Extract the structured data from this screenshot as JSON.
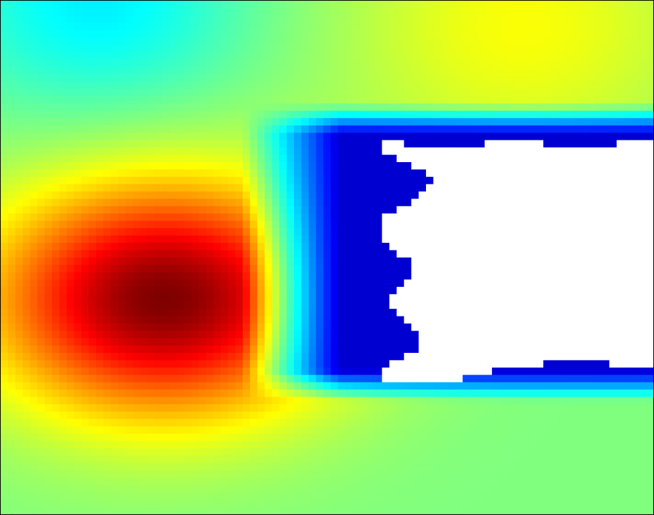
{
  "chart_data": {
    "type": "heatmap",
    "title": "",
    "xlabel": "",
    "ylabel": "",
    "grid": false,
    "legend": "none",
    "colormap": "jet",
    "colors": {
      "min": "#00008f",
      "low": "#0000ff",
      "mid_low": "#00ffff",
      "mid": "#80ff80",
      "mid_high": "#ffff00",
      "high": "#ff0000",
      "max": "#800000",
      "missing": "#ffffff"
    },
    "value_range": [
      0,
      1
    ],
    "grid_shape": [
      70,
      89
    ],
    "features": {
      "hot_core": {
        "cx": 0.25,
        "cy": 0.58,
        "peak": 1.0,
        "spread": 0.3
      },
      "background_level": 0.5,
      "cool_band": {
        "y_top": 0.2,
        "y_bottom": 0.78,
        "x_start": 0.42
      },
      "missing_region": {
        "x_start": 0.58,
        "y_top": 0.28,
        "y_bottom": 0.74
      }
    }
  }
}
